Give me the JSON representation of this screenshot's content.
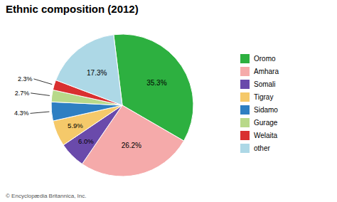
{
  "chart_data": {
    "type": "pie",
    "title": "Ethnic composition (2012)",
    "categories": [
      "Oromo",
      "Amhara",
      "Somali",
      "Tigray",
      "Sidamo",
      "Gurage",
      "Welaita",
      "other"
    ],
    "values": [
      35.3,
      26.2,
      6.0,
      5.9,
      4.3,
      2.7,
      2.3,
      17.3
    ],
    "value_labels": [
      "35.3%",
      "26.2%",
      "6.0%",
      "5.9%",
      "4.3%",
      "2.7%",
      "2.3%",
      "17.3%"
    ],
    "colors": [
      "#2db040",
      "#f5aaaa",
      "#6a4aab",
      "#f5c96a",
      "#2e7fc2",
      "#b8d98a",
      "#d93030",
      "#add8e6"
    ],
    "data_labels": true,
    "legend": "right",
    "annotations": [
      "© Encyclopædia Britannica, Inc."
    ]
  }
}
